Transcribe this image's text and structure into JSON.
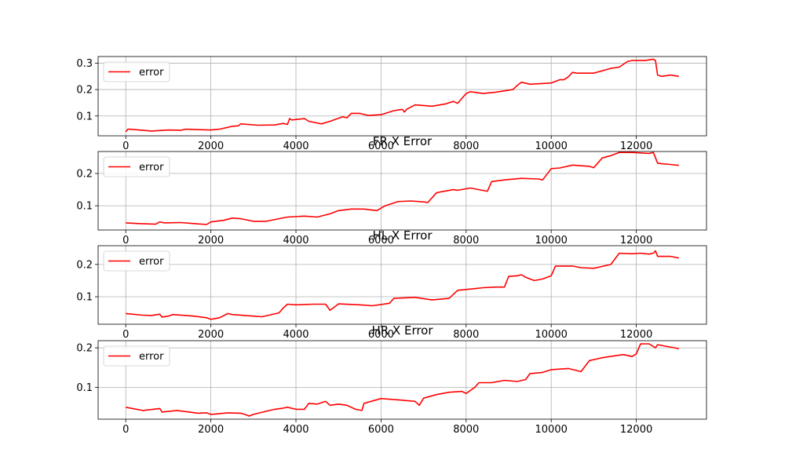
{
  "colors": {
    "series": "#ff0000",
    "grid": "#b0b0b0",
    "axis": "#000000"
  },
  "chart_data": [
    {
      "type": "line",
      "title": "",
      "xlabel": "",
      "ylabel": "",
      "xlim": [
        -650,
        13650
      ],
      "ylim": [
        0.025,
        0.325
      ],
      "xticks": [
        0,
        2000,
        4000,
        6000,
        8000,
        10000,
        12000
      ],
      "xtick_labels": [
        "0",
        "2000",
        "4000",
        "6000",
        "8000",
        "10000",
        "12000"
      ],
      "yticks": [
        0.1,
        0.2,
        0.3
      ],
      "ytick_labels": [
        "0.1",
        "0.2",
        "0.3"
      ],
      "grid": true,
      "legend_placement": "top-left",
      "series": [
        {
          "name": "error",
          "color": "#ff0000",
          "x": [
            0,
            50,
            100,
            600,
            800,
            1000,
            1300,
            1400,
            2000,
            2200,
            2400,
            2500,
            2650,
            2700,
            3100,
            3500,
            3700,
            3800,
            3850,
            3900,
            4200,
            4300,
            4600,
            4800,
            5100,
            5200,
            5300,
            5500,
            5700,
            6000,
            6300,
            6500,
            6550,
            6600,
            6800,
            7200,
            7500,
            7700,
            7800,
            8000,
            8100,
            8400,
            8700,
            9100,
            9200,
            9300,
            9500,
            10000,
            10200,
            10300,
            10400,
            10500,
            10600,
            11000,
            11400,
            11600,
            11800,
            11900,
            12200,
            12400,
            12450,
            12500,
            12600,
            12800,
            13000
          ],
          "y": [
            0.04,
            0.05,
            0.05,
            0.043,
            0.045,
            0.047,
            0.046,
            0.05,
            0.047,
            0.05,
            0.057,
            0.061,
            0.063,
            0.07,
            0.065,
            0.066,
            0.072,
            0.068,
            0.09,
            0.085,
            0.09,
            0.08,
            0.07,
            0.08,
            0.097,
            0.093,
            0.11,
            0.11,
            0.102,
            0.105,
            0.12,
            0.125,
            0.115,
            0.125,
            0.142,
            0.137,
            0.145,
            0.155,
            0.148,
            0.185,
            0.192,
            0.185,
            0.19,
            0.2,
            0.215,
            0.228,
            0.22,
            0.225,
            0.237,
            0.237,
            0.248,
            0.265,
            0.262,
            0.262,
            0.28,
            0.285,
            0.307,
            0.31,
            0.31,
            0.315,
            0.31,
            0.255,
            0.25,
            0.255,
            0.25
          ]
        }
      ]
    },
    {
      "type": "line",
      "title": "FR X Error",
      "xlabel": "",
      "ylabel": "",
      "xlim": [
        -650,
        13650
      ],
      "ylim": [
        0.025,
        0.268
      ],
      "xticks": [
        0,
        2000,
        4000,
        6000,
        8000,
        10000,
        12000
      ],
      "xtick_labels": [
        "0",
        "2000",
        "4000",
        "6000",
        "8000",
        "10000",
        "12000"
      ],
      "yticks": [
        0.1,
        0.2
      ],
      "ytick_labels": [
        "0.1",
        "0.2"
      ],
      "grid": true,
      "legend_placement": "top-left",
      "series": [
        {
          "name": "error",
          "color": "#ff0000",
          "x": [
            0,
            300,
            700,
            800,
            900,
            1300,
            1600,
            1900,
            2000,
            2300,
            2500,
            2700,
            3000,
            3300,
            3600,
            3800,
            4200,
            4500,
            4800,
            5000,
            5300,
            5600,
            5900,
            6100,
            6400,
            6700,
            7000,
            7100,
            7300,
            7400,
            7700,
            7800,
            8100,
            8300,
            8500,
            8600,
            8900,
            9300,
            9700,
            9800,
            10000,
            10200,
            10500,
            10900,
            11000,
            11200,
            11400,
            11600,
            11900,
            12300,
            12400,
            12500,
            12600,
            12800,
            13000
          ],
          "y": [
            0.047,
            0.045,
            0.043,
            0.05,
            0.047,
            0.048,
            0.045,
            0.042,
            0.05,
            0.055,
            0.062,
            0.06,
            0.052,
            0.052,
            0.06,
            0.065,
            0.068,
            0.065,
            0.075,
            0.085,
            0.09,
            0.09,
            0.085,
            0.1,
            0.113,
            0.115,
            0.112,
            0.11,
            0.14,
            0.143,
            0.15,
            0.148,
            0.155,
            0.15,
            0.145,
            0.175,
            0.18,
            0.185,
            0.183,
            0.18,
            0.215,
            0.217,
            0.226,
            0.222,
            0.218,
            0.248,
            0.255,
            0.265,
            0.265,
            0.262,
            0.265,
            0.232,
            0.23,
            0.228,
            0.225
          ]
        }
      ]
    },
    {
      "type": "line",
      "title": "HL X Error",
      "xlabel": "",
      "ylabel": "",
      "xlim": [
        -650,
        13650
      ],
      "ylim": [
        0.015,
        0.258
      ],
      "xticks": [
        0,
        2000,
        4000,
        6000,
        8000,
        10000,
        12000
      ],
      "xtick_labels": [
        "0",
        "2000",
        "4000",
        "6000",
        "8000",
        "10000",
        "12000"
      ],
      "yticks": [
        0.1,
        0.2
      ],
      "ytick_labels": [
        "0.1",
        "0.2"
      ],
      "grid": true,
      "legend_placement": "top-left",
      "series": [
        {
          "name": "error",
          "color": "#ff0000",
          "x": [
            0,
            400,
            600,
            800,
            850,
            1000,
            1100,
            1600,
            1900,
            2000,
            2200,
            2400,
            2500,
            3000,
            3200,
            3600,
            3700,
            3800,
            4000,
            4400,
            4700,
            4800,
            4900,
            5000,
            5500,
            5800,
            6200,
            6300,
            6800,
            7200,
            7600,
            7800,
            8200,
            8400,
            8700,
            8900,
            9000,
            9200,
            9300,
            9400,
            9600,
            9800,
            10000,
            10100,
            10500,
            10700,
            11000,
            11400,
            11600,
            11900,
            12100,
            12300,
            12400,
            12450,
            12500,
            12800,
            13000
          ],
          "y": [
            0.048,
            0.043,
            0.042,
            0.046,
            0.037,
            0.04,
            0.045,
            0.04,
            0.035,
            0.03,
            0.035,
            0.048,
            0.045,
            0.04,
            0.038,
            0.05,
            0.065,
            0.077,
            0.075,
            0.077,
            0.077,
            0.058,
            0.068,
            0.078,
            0.075,
            0.072,
            0.08,
            0.095,
            0.098,
            0.09,
            0.095,
            0.12,
            0.125,
            0.128,
            0.13,
            0.13,
            0.163,
            0.165,
            0.168,
            0.16,
            0.15,
            0.155,
            0.165,
            0.195,
            0.195,
            0.19,
            0.188,
            0.2,
            0.235,
            0.233,
            0.235,
            0.232,
            0.235,
            0.242,
            0.225,
            0.225,
            0.22
          ]
        }
      ]
    },
    {
      "type": "line",
      "title": "HR X Error",
      "xlabel": "",
      "ylabel": "",
      "xlim": [
        -650,
        13650
      ],
      "ylim": [
        0.02,
        0.218
      ],
      "xticks": [
        0,
        2000,
        4000,
        6000,
        8000,
        10000,
        12000
      ],
      "xtick_labels": [
        "0",
        "2000",
        "4000",
        "6000",
        "8000",
        "10000",
        "12000"
      ],
      "yticks": [
        0.1,
        0.2
      ],
      "ytick_labels": [
        "0.1",
        "0.2"
      ],
      "grid": true,
      "legend_placement": "top-left",
      "series": [
        {
          "name": "error",
          "color": "#ff0000",
          "x": [
            0,
            400,
            800,
            850,
            1200,
            1500,
            1700,
            1900,
            2000,
            2400,
            2700,
            2800,
            2900,
            3000,
            3300,
            3500,
            3700,
            3800,
            4000,
            4200,
            4300,
            4500,
            4700,
            4800,
            5000,
            5200,
            5400,
            5550,
            5600,
            6000,
            6500,
            6800,
            6900,
            7000,
            7300,
            7600,
            7900,
            8000,
            8200,
            8300,
            8600,
            8900,
            9200,
            9400,
            9500,
            9800,
            10000,
            10400,
            10700,
            10900,
            11200,
            11500,
            11700,
            11900,
            12000,
            12100,
            12300,
            12450,
            12500,
            13000
          ],
          "y": [
            0.05,
            0.042,
            0.047,
            0.038,
            0.042,
            0.038,
            0.035,
            0.036,
            0.032,
            0.036,
            0.035,
            0.032,
            0.028,
            0.032,
            0.04,
            0.045,
            0.048,
            0.05,
            0.045,
            0.045,
            0.06,
            0.058,
            0.065,
            0.055,
            0.058,
            0.055,
            0.045,
            0.042,
            0.06,
            0.072,
            0.068,
            0.065,
            0.055,
            0.073,
            0.082,
            0.088,
            0.09,
            0.085,
            0.1,
            0.112,
            0.112,
            0.118,
            0.115,
            0.12,
            0.135,
            0.138,
            0.145,
            0.148,
            0.14,
            0.168,
            0.175,
            0.18,
            0.183,
            0.178,
            0.185,
            0.21,
            0.21,
            0.2,
            0.208,
            0.198
          ]
        }
      ]
    }
  ]
}
